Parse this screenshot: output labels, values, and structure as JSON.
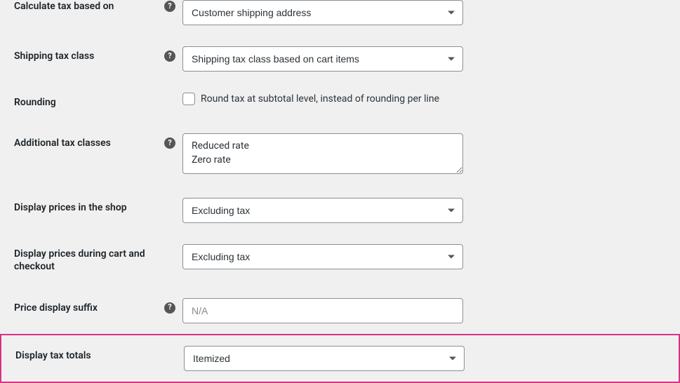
{
  "rows": {
    "calculate_basis": {
      "label": "Calculate tax based on",
      "help": true,
      "value": "Customer shipping address"
    },
    "shipping_tax_class": {
      "label": "Shipping tax class",
      "help": true,
      "value": "Shipping tax class based on cart items"
    },
    "rounding": {
      "label": "Rounding",
      "help": false,
      "checkbox_label": "Round tax at subtotal level, instead of rounding per line"
    },
    "additional_classes": {
      "label": "Additional tax classes",
      "help": true,
      "value": "Reduced rate\nZero rate"
    },
    "display_shop": {
      "label": "Display prices in the shop",
      "help": false,
      "value": "Excluding tax"
    },
    "display_cart": {
      "label": "Display prices during cart and checkout",
      "help": false,
      "value": "Excluding tax"
    },
    "price_suffix": {
      "label": "Price display suffix",
      "help": true,
      "placeholder": "N/A"
    },
    "display_totals": {
      "label": "Display tax totals",
      "help": false,
      "value": "Itemized"
    }
  },
  "colors": {
    "highlight_border": "#d63384",
    "page_bg": "#f0f0f1"
  }
}
